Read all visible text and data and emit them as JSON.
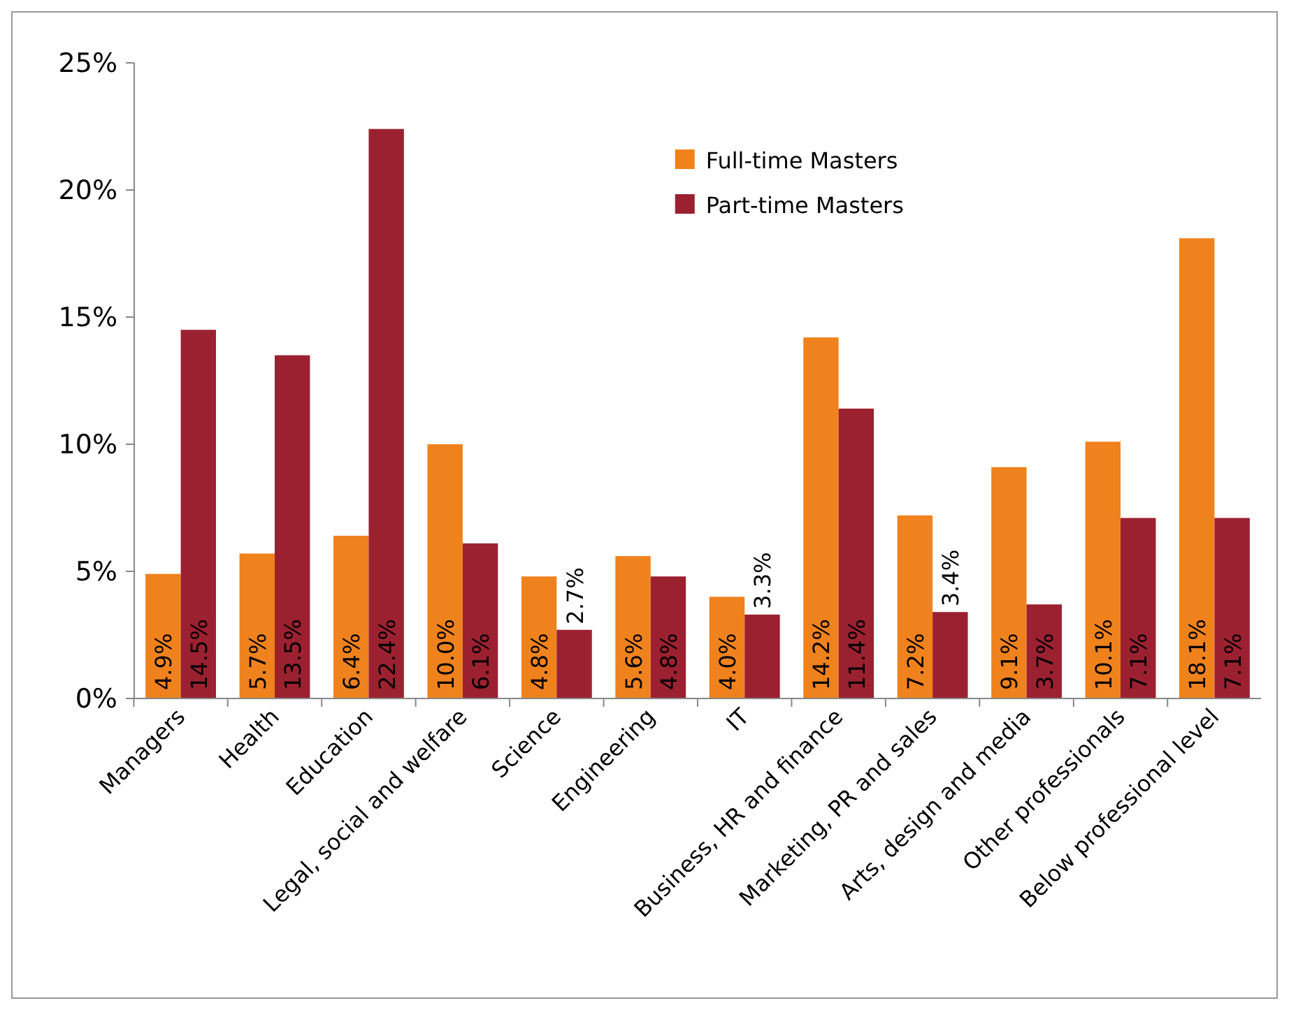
{
  "chart_data": {
    "type": "bar",
    "categories": [
      "Managers",
      "Health",
      "Education",
      "Legal, social and welfare",
      "Science",
      "Engineering",
      "IT",
      "Business, HR and finance",
      "Marketing, PR and sales",
      "Arts, design and media",
      "Other professionals",
      "Below professional level"
    ],
    "series": [
      {
        "name": "Full-time Masters",
        "color": "#f0821e",
        "values": [
          4.9,
          5.7,
          6.4,
          10.0,
          4.8,
          5.6,
          4.0,
          14.2,
          7.2,
          9.1,
          10.1,
          18.1
        ],
        "value_labels": [
          "4.9%",
          "5.7%",
          "6.4%",
          "10.0%",
          "4.8%",
          "5.6%",
          "4.0%",
          "14.2%",
          "7.2%",
          "9.1%",
          "10.1%",
          "18.1%"
        ]
      },
      {
        "name": "Part-time Masters",
        "color": "#9b2131",
        "values": [
          14.5,
          13.5,
          22.4,
          6.1,
          2.7,
          4.8,
          3.3,
          11.4,
          3.4,
          3.7,
          7.1,
          7.1
        ],
        "value_labels": [
          "14.5%",
          "13.5%",
          "22.4%",
          "6.1%",
          "2.7%",
          "4.8%",
          "3.3%",
          "11.4%",
          "3.4%",
          "3.7%",
          "7.1%",
          "7.1%"
        ]
      }
    ],
    "ylim": [
      0,
      25
    ],
    "yticks": [
      {
        "value": 0,
        "label": "0%"
      },
      {
        "value": 5,
        "label": "5%"
      },
      {
        "value": 10,
        "label": "10%"
      },
      {
        "value": 15,
        "label": "15%"
      },
      {
        "value": 20,
        "label": "20%"
      },
      {
        "value": 25,
        "label": "25%"
      }
    ],
    "grid": false,
    "legend": "top right"
  }
}
